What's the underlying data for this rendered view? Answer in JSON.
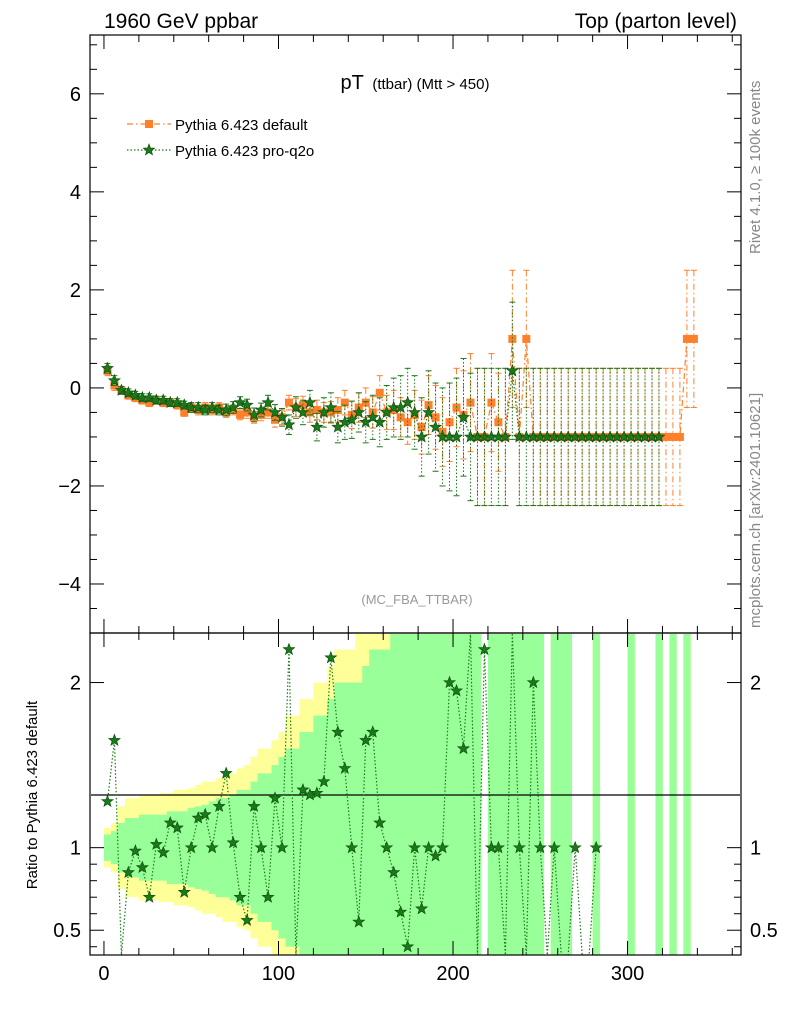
{
  "header": {
    "left": "1960 GeV ppbar",
    "right": "Top (parton level)"
  },
  "side_labels": {
    "rivet": "Rivet 4.1.0, ≥ 100k events",
    "mcplots": "mcplots.cern.ch [arXiv:2401.10621]"
  },
  "colors": {
    "default": "#ff7f2a",
    "proq2o": "#1a7a1a",
    "band_yellow": "#ffff99",
    "band_green": "#99ff99"
  },
  "chart_data": [
    {
      "type": "line",
      "title_main": "pT",
      "title_sub": "(ttbar) (Mtt > 450)",
      "watermark": "(MC_FBA_TTBAR)",
      "xlim": [
        -8,
        365
      ],
      "ylim": [
        -5,
        7.2
      ],
      "yticks": [
        -4,
        -2,
        0,
        2,
        4,
        6
      ],
      "yticklabels": [
        "−4",
        "−2",
        "0",
        "2",
        "4",
        "6"
      ],
      "legend": [
        "Pythia 6.423 default",
        "Pythia 6.423 pro-q2o"
      ],
      "series": [
        {
          "name": "Pythia 6.423 default",
          "x": [
            2,
            6,
            10,
            14,
            18,
            22,
            26,
            30,
            34,
            38,
            42,
            46,
            50,
            54,
            58,
            62,
            66,
            70,
            74,
            78,
            82,
            86,
            90,
            94,
            98,
            102,
            106,
            110,
            114,
            118,
            122,
            126,
            130,
            134,
            138,
            142,
            146,
            150,
            154,
            158,
            162,
            166,
            170,
            174,
            178,
            182,
            186,
            190,
            194,
            198,
            202,
            206,
            210,
            214,
            218,
            222,
            226,
            230,
            234,
            238,
            242,
            246,
            250,
            254,
            258,
            262,
            266,
            270,
            274,
            278,
            282,
            286,
            290,
            294,
            298,
            302,
            306,
            310,
            314,
            318,
            322,
            326,
            330,
            334,
            338
          ],
          "y": [
            0.35,
            0.05,
            -0.05,
            -0.15,
            -0.2,
            -0.25,
            -0.3,
            -0.25,
            -0.3,
            -0.3,
            -0.35,
            -0.5,
            -0.4,
            -0.45,
            -0.4,
            -0.45,
            -0.4,
            -0.5,
            -0.45,
            -0.55,
            -0.5,
            -0.6,
            -0.55,
            -0.5,
            -0.65,
            -0.6,
            -0.3,
            -0.4,
            -0.35,
            -0.5,
            -0.45,
            -0.5,
            -0.5,
            -0.45,
            -0.3,
            -0.55,
            -0.4,
            -0.3,
            -0.5,
            -0.1,
            -0.5,
            -0.45,
            -0.6,
            -0.7,
            -0.55,
            -0.8,
            -0.35,
            -0.6,
            -0.9,
            -0.7,
            -0.4,
            -0.55,
            -0.3,
            -1.0,
            -1.0,
            -0.3,
            -0.7,
            -1.0,
            1.0,
            -1.0,
            1.0,
            -1.0,
            -1.0,
            -1.0,
            -1.0,
            -1.0,
            -1.0,
            -1.0,
            -1.0,
            -1.0,
            -1.0,
            -1.0,
            -1.0,
            -1.0,
            -1.0,
            -1.0,
            -1.0,
            -1.0,
            -1.0,
            -1.0,
            -1.0,
            -1.0,
            -1.0,
            1.0,
            1.0
          ],
          "err": [
            0.1,
            0.1,
            0.08,
            0.08,
            0.08,
            0.08,
            0.08,
            0.08,
            0.08,
            0.08,
            0.08,
            0.08,
            0.08,
            0.1,
            0.1,
            0.1,
            0.1,
            0.1,
            0.1,
            0.1,
            0.12,
            0.12,
            0.12,
            0.12,
            0.15,
            0.15,
            0.15,
            0.18,
            0.18,
            0.2,
            0.2,
            0.2,
            0.22,
            0.25,
            0.25,
            0.28,
            0.3,
            0.3,
            0.32,
            0.35,
            0.35,
            0.4,
            0.4,
            0.45,
            0.5,
            0.55,
            0.6,
            0.65,
            0.7,
            0.8,
            0.8,
            0.9,
            1.0,
            1.4,
            1.4,
            1.0,
            1.0,
            1.4,
            1.4,
            1.4,
            1.4,
            1.4,
            1.4,
            1.4,
            1.4,
            1.4,
            1.4,
            1.4,
            1.4,
            1.4,
            1.4,
            1.4,
            1.4,
            1.4,
            1.4,
            1.4,
            1.4,
            1.4,
            1.4,
            1.4,
            1.4,
            1.4,
            1.4,
            1.4,
            1.4
          ]
        },
        {
          "name": "Pythia 6.423 pro-q2o",
          "x": [
            2,
            6,
            10,
            14,
            18,
            22,
            26,
            30,
            34,
            38,
            42,
            46,
            50,
            54,
            58,
            62,
            66,
            70,
            74,
            78,
            82,
            86,
            90,
            94,
            98,
            102,
            106,
            110,
            114,
            118,
            122,
            126,
            130,
            134,
            138,
            142,
            146,
            150,
            154,
            158,
            162,
            166,
            170,
            174,
            178,
            182,
            186,
            190,
            194,
            198,
            202,
            206,
            210,
            214,
            218,
            222,
            226,
            230,
            234,
            238,
            242,
            246,
            250,
            254,
            258,
            262,
            266,
            270,
            274,
            278,
            282,
            286,
            290,
            294,
            298,
            302,
            306,
            310,
            314,
            318
          ],
          "y": [
            0.4,
            0.15,
            -0.05,
            -0.1,
            -0.15,
            -0.2,
            -0.2,
            -0.25,
            -0.25,
            -0.3,
            -0.3,
            -0.35,
            -0.4,
            -0.4,
            -0.45,
            -0.4,
            -0.45,
            -0.45,
            -0.4,
            -0.3,
            -0.35,
            -0.55,
            -0.45,
            -0.3,
            -0.5,
            -0.6,
            -0.75,
            -0.4,
            -0.5,
            -0.3,
            -0.8,
            -0.5,
            -0.4,
            -0.8,
            -0.7,
            -0.65,
            -0.5,
            -0.7,
            -0.6,
            -0.7,
            -0.5,
            -0.4,
            -0.4,
            -0.3,
            -0.5,
            -1.0,
            -0.5,
            -0.8,
            -1.0,
            -1.0,
            -1.0,
            -0.6,
            -1.0,
            -1.0,
            -1.0,
            -1.0,
            -1.0,
            -1.0,
            0.35,
            -1.0,
            -1.0,
            -1.0,
            -1.0,
            -1.0,
            -1.0,
            -1.0,
            -1.0,
            -1.0,
            -1.0,
            -1.0,
            -1.0,
            -1.0,
            -1.0,
            -1.0,
            -1.0,
            -1.0,
            -1.0,
            -1.0,
            -1.0,
            -1.0
          ],
          "err": [
            0.1,
            0.1,
            0.08,
            0.08,
            0.08,
            0.08,
            0.08,
            0.08,
            0.08,
            0.08,
            0.08,
            0.08,
            0.1,
            0.1,
            0.1,
            0.1,
            0.1,
            0.12,
            0.12,
            0.12,
            0.12,
            0.14,
            0.14,
            0.15,
            0.16,
            0.18,
            0.2,
            0.22,
            0.25,
            0.25,
            0.28,
            0.3,
            0.3,
            0.32,
            0.35,
            0.38,
            0.4,
            0.42,
            0.45,
            0.5,
            0.55,
            0.6,
            0.65,
            0.7,
            0.75,
            0.8,
            0.85,
            0.9,
            1.0,
            1.1,
            1.2,
            1.2,
            1.3,
            1.4,
            1.4,
            1.4,
            1.4,
            1.4,
            1.4,
            1.4,
            1.4,
            1.4,
            1.4,
            1.4,
            1.4,
            1.4,
            1.4,
            1.4,
            1.4,
            1.4,
            1.4,
            1.4,
            1.4,
            1.4,
            1.4,
            1.4,
            1.4,
            1.4,
            1.4,
            1.4
          ]
        }
      ]
    },
    {
      "type": "line",
      "ylabel": "Ratio to Pythia 6.423 default",
      "xlim": [
        -8,
        365
      ],
      "ylim": [
        0.35,
        2.3
      ],
      "reference": 1,
      "yticks": [
        0.5,
        1,
        2
      ],
      "yticklabels": [
        "0.5",
        "1",
        "2"
      ],
      "xticks": [
        0,
        100,
        200,
        300
      ],
      "xticklabels": [
        "0",
        "100",
        "200",
        "300"
      ],
      "band": {
        "x": [
          2,
          6,
          10,
          14,
          18,
          22,
          26,
          30,
          34,
          38,
          42,
          46,
          50,
          54,
          58,
          62,
          66,
          70,
          74,
          78,
          82,
          86,
          90,
          94,
          98,
          102,
          106,
          110,
          114,
          118,
          122,
          126,
          130,
          134,
          138,
          142,
          146,
          150,
          154,
          158,
          162,
          166,
          170,
          174,
          178,
          182,
          186,
          190,
          194,
          198,
          202,
          206,
          210,
          214,
          218,
          222,
          226,
          230,
          234,
          238,
          242,
          246,
          250,
          254,
          258,
          262,
          266,
          270,
          274,
          278,
          282,
          286,
          290,
          294,
          298,
          302,
          306,
          310,
          314,
          318,
          322,
          326,
          330,
          334,
          338
        ],
        "yellow_half": [
          0.12,
          0.15,
          0.25,
          0.3,
          0.3,
          0.32,
          0.32,
          0.32,
          0.33,
          0.33,
          0.35,
          0.35,
          0.36,
          0.38,
          0.4,
          0.4,
          0.42,
          0.45,
          0.45,
          0.48,
          0.5,
          0.55,
          0.6,
          0.6,
          0.65,
          0.7,
          0.8,
          0.8,
          0.9,
          0.9,
          1.0,
          1.0,
          1.1,
          1.2,
          1.2,
          1.2,
          1.3,
          1.3,
          1.4,
          1.4,
          1.5,
          1.5,
          1.5,
          1.6,
          1.6,
          1.6,
          1.7,
          1.7,
          1.8,
          1.8,
          1.9,
          1.9,
          2.0,
          2.0,
          0.0,
          2.0,
          2.0,
          2.0,
          2.0,
          2.0,
          2.0,
          2.0,
          2.0,
          0.0,
          2.0,
          2.0,
          2.0,
          0.0,
          0.0,
          0.0,
          2.0,
          0.0,
          0.0,
          0.0,
          0.0,
          2.0,
          0.0,
          0.0,
          0.0,
          2.0,
          0.0,
          2.0,
          0.0,
          2.0,
          0.0
        ],
        "green_half": [
          0.08,
          0.1,
          0.15,
          0.18,
          0.18,
          0.2,
          0.2,
          0.2,
          0.2,
          0.22,
          0.22,
          0.22,
          0.24,
          0.25,
          0.26,
          0.28,
          0.3,
          0.3,
          0.32,
          0.35,
          0.35,
          0.4,
          0.45,
          0.45,
          0.5,
          0.55,
          0.6,
          0.6,
          0.7,
          0.7,
          0.8,
          0.8,
          0.9,
          1.0,
          1.0,
          1.0,
          1.0,
          1.1,
          1.2,
          1.2,
          1.2,
          1.3,
          1.3,
          1.4,
          1.4,
          1.4,
          1.5,
          1.5,
          1.5,
          1.6,
          1.6,
          1.6,
          1.7,
          1.7,
          0.0,
          2.0,
          2.0,
          2.0,
          2.0,
          2.0,
          2.0,
          2.0,
          2.0,
          0.0,
          2.0,
          2.0,
          2.0,
          0.0,
          0.0,
          0.0,
          2.0,
          0.0,
          0.0,
          0.0,
          0.0,
          2.0,
          0.0,
          0.0,
          0.0,
          2.0,
          0.0,
          2.0,
          0.0,
          2.0,
          0.0
        ]
      },
      "series": [
        {
          "name": "pro-q2o / default",
          "x": [
            2,
            6,
            10,
            14,
            18,
            22,
            26,
            30,
            34,
            38,
            42,
            46,
            50,
            54,
            58,
            62,
            66,
            70,
            74,
            78,
            82,
            86,
            90,
            94,
            98,
            102,
            106,
            110,
            114,
            118,
            122,
            126,
            130,
            134,
            138,
            142,
            146,
            150,
            154,
            158,
            162,
            166,
            170,
            174,
            178,
            182,
            186,
            190,
            194,
            198,
            202,
            206,
            210,
            214,
            218,
            222,
            226,
            230,
            234,
            238,
            242,
            246,
            250,
            254,
            258,
            262,
            266,
            270,
            274,
            278,
            282
          ],
          "y": [
            1.28,
            1.65,
            0.3,
            0.85,
            0.98,
            0.88,
            0.7,
            1.02,
            0.97,
            1.15,
            1.12,
            0.73,
            1.0,
            1.18,
            1.2,
            1.0,
            1.25,
            1.45,
            1.03,
            0.7,
            0.56,
            1.25,
            1.0,
            0.7,
            1.3,
            1.0,
            2.2,
            0.3,
            1.35,
            1.32,
            1.33,
            1.4,
            2.15,
            1.7,
            1.48,
            1.0,
            0.55,
            1.65,
            1.7,
            1.15,
            1.0,
            0.85,
            0.61,
            0.4,
            1.0,
            0.63,
            1.0,
            0.95,
            1.0,
            2.0,
            1.95,
            1.6,
            2.3,
            0.35,
            2.2,
            1.0,
            1.0,
            0.35,
            2.3,
            1.0,
            0.35,
            2.0,
            1.0,
            0.35,
            1.0,
            0.35,
            0.35,
            1.0,
            0.35,
            0.35,
            1.0
          ]
        }
      ]
    }
  ]
}
